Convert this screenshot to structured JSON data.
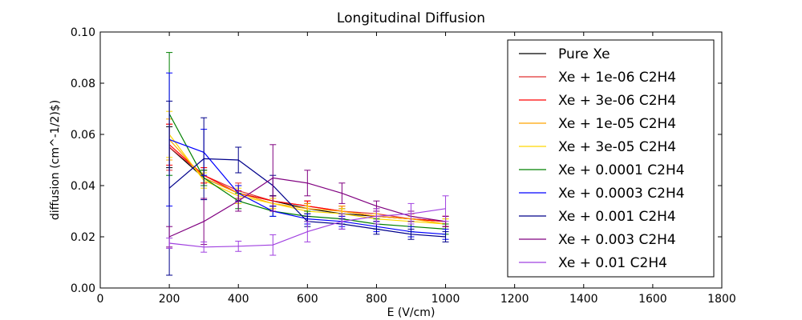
{
  "chart_data": {
    "type": "line",
    "title": "Longitudinal Diffusion",
    "xlabel": "E (V/cm)",
    "ylabel": "diffusion (cm^-1/2)$)",
    "xlim": [
      0,
      1800
    ],
    "ylim": [
      0.0,
      0.1
    ],
    "xticks": [
      "0",
      "200",
      "400",
      "600",
      "800",
      "1000",
      "1200",
      "1400",
      "1600",
      "1800"
    ],
    "yticks": [
      "0.00",
      "0.02",
      "0.04",
      "0.06",
      "0.08",
      "0.10"
    ],
    "grid": false,
    "legend_position": "top-right",
    "x": [
      200,
      300,
      400,
      500,
      600,
      700,
      800,
      900,
      1000
    ],
    "series": [
      {
        "name": "Pure Xe",
        "color": "#000000",
        "values": [
          0.055,
          0.043,
          0.037,
          0.034,
          0.031,
          0.029,
          0.028,
          0.027,
          0.026
        ],
        "errors": [
          0.008,
          0.003,
          0.003,
          0.002,
          0.002,
          0.002,
          0.002,
          0.002,
          0.002
        ]
      },
      {
        "name": "Xe + 1e-06 C2H4",
        "color": "#e03030",
        "values": [
          0.055,
          0.044,
          0.038,
          0.034,
          0.032,
          0.03,
          0.029,
          0.027,
          0.026
        ],
        "errors": [
          0.009,
          0.003,
          0.003,
          0.002,
          0.002,
          0.002,
          0.002,
          0.002,
          0.002
        ]
      },
      {
        "name": "Xe + 3e-06 C2H4",
        "color": "#ff0000",
        "values": [
          0.056,
          0.044,
          0.037,
          0.034,
          0.032,
          0.03,
          0.028,
          0.027,
          0.026
        ],
        "errors": [
          0.008,
          0.003,
          0.003,
          0.002,
          0.002,
          0.002,
          0.002,
          0.002,
          0.002
        ]
      },
      {
        "name": "Xe + 1e-05 C2H4",
        "color": "#ffa500",
        "values": [
          0.058,
          0.043,
          0.037,
          0.033,
          0.031,
          0.03,
          0.028,
          0.027,
          0.025
        ],
        "errors": [
          0.008,
          0.003,
          0.003,
          0.002,
          0.002,
          0.002,
          0.002,
          0.002,
          0.002
        ]
      },
      {
        "name": "Xe + 3e-05 C2H4",
        "color": "#ffd700",
        "values": [
          0.06,
          0.042,
          0.036,
          0.033,
          0.03,
          0.029,
          0.027,
          0.026,
          0.025
        ],
        "errors": [
          0.009,
          0.003,
          0.003,
          0.002,
          0.002,
          0.002,
          0.002,
          0.002,
          0.002
        ]
      },
      {
        "name": "Xe + 0.0001 C2H4",
        "color": "#008000",
        "values": [
          0.068,
          0.043,
          0.034,
          0.03,
          0.028,
          0.027,
          0.025,
          0.024,
          0.023
        ],
        "errors": [
          0.024,
          0.003,
          0.003,
          0.002,
          0.002,
          0.002,
          0.002,
          0.002,
          0.002
        ]
      },
      {
        "name": "Xe + 0.0003 C2H4",
        "color": "#0000ff",
        "values": [
          0.058,
          0.053,
          0.037,
          0.03,
          0.027,
          0.026,
          0.024,
          0.022,
          0.021
        ],
        "errors": [
          0.026,
          0.009,
          0.003,
          0.002,
          0.002,
          0.002,
          0.002,
          0.002,
          0.002
        ]
      },
      {
        "name": "Xe + 0.001 C2H4",
        "color": "#00008b",
        "values": [
          0.039,
          0.0505,
          0.05,
          0.04,
          0.026,
          0.025,
          0.023,
          0.021,
          0.02
        ],
        "errors": [
          0.034,
          0.016,
          0.005,
          0.004,
          0.002,
          0.002,
          0.002,
          0.002,
          0.002
        ]
      },
      {
        "name": "Xe + 0.003 C2H4",
        "color": "#800080",
        "values": [
          0.02,
          0.026,
          0.034,
          0.043,
          0.041,
          0.037,
          0.032,
          0.028,
          0.026
        ],
        "errors": [
          0.004,
          0.009,
          0.004,
          0.013,
          0.005,
          0.004,
          0.002,
          0.002,
          0.002
        ]
      },
      {
        "name": "Xe + 0.01 C2H4",
        "color": "#a040e0",
        "values": [
          0.0175,
          0.016,
          0.0163,
          0.0168,
          0.022,
          0.026,
          0.028,
          0.029,
          0.031
        ],
        "errors": [
          0.002,
          0.002,
          0.002,
          0.004,
          0.004,
          0.003,
          0.003,
          0.004,
          0.005
        ]
      }
    ]
  }
}
